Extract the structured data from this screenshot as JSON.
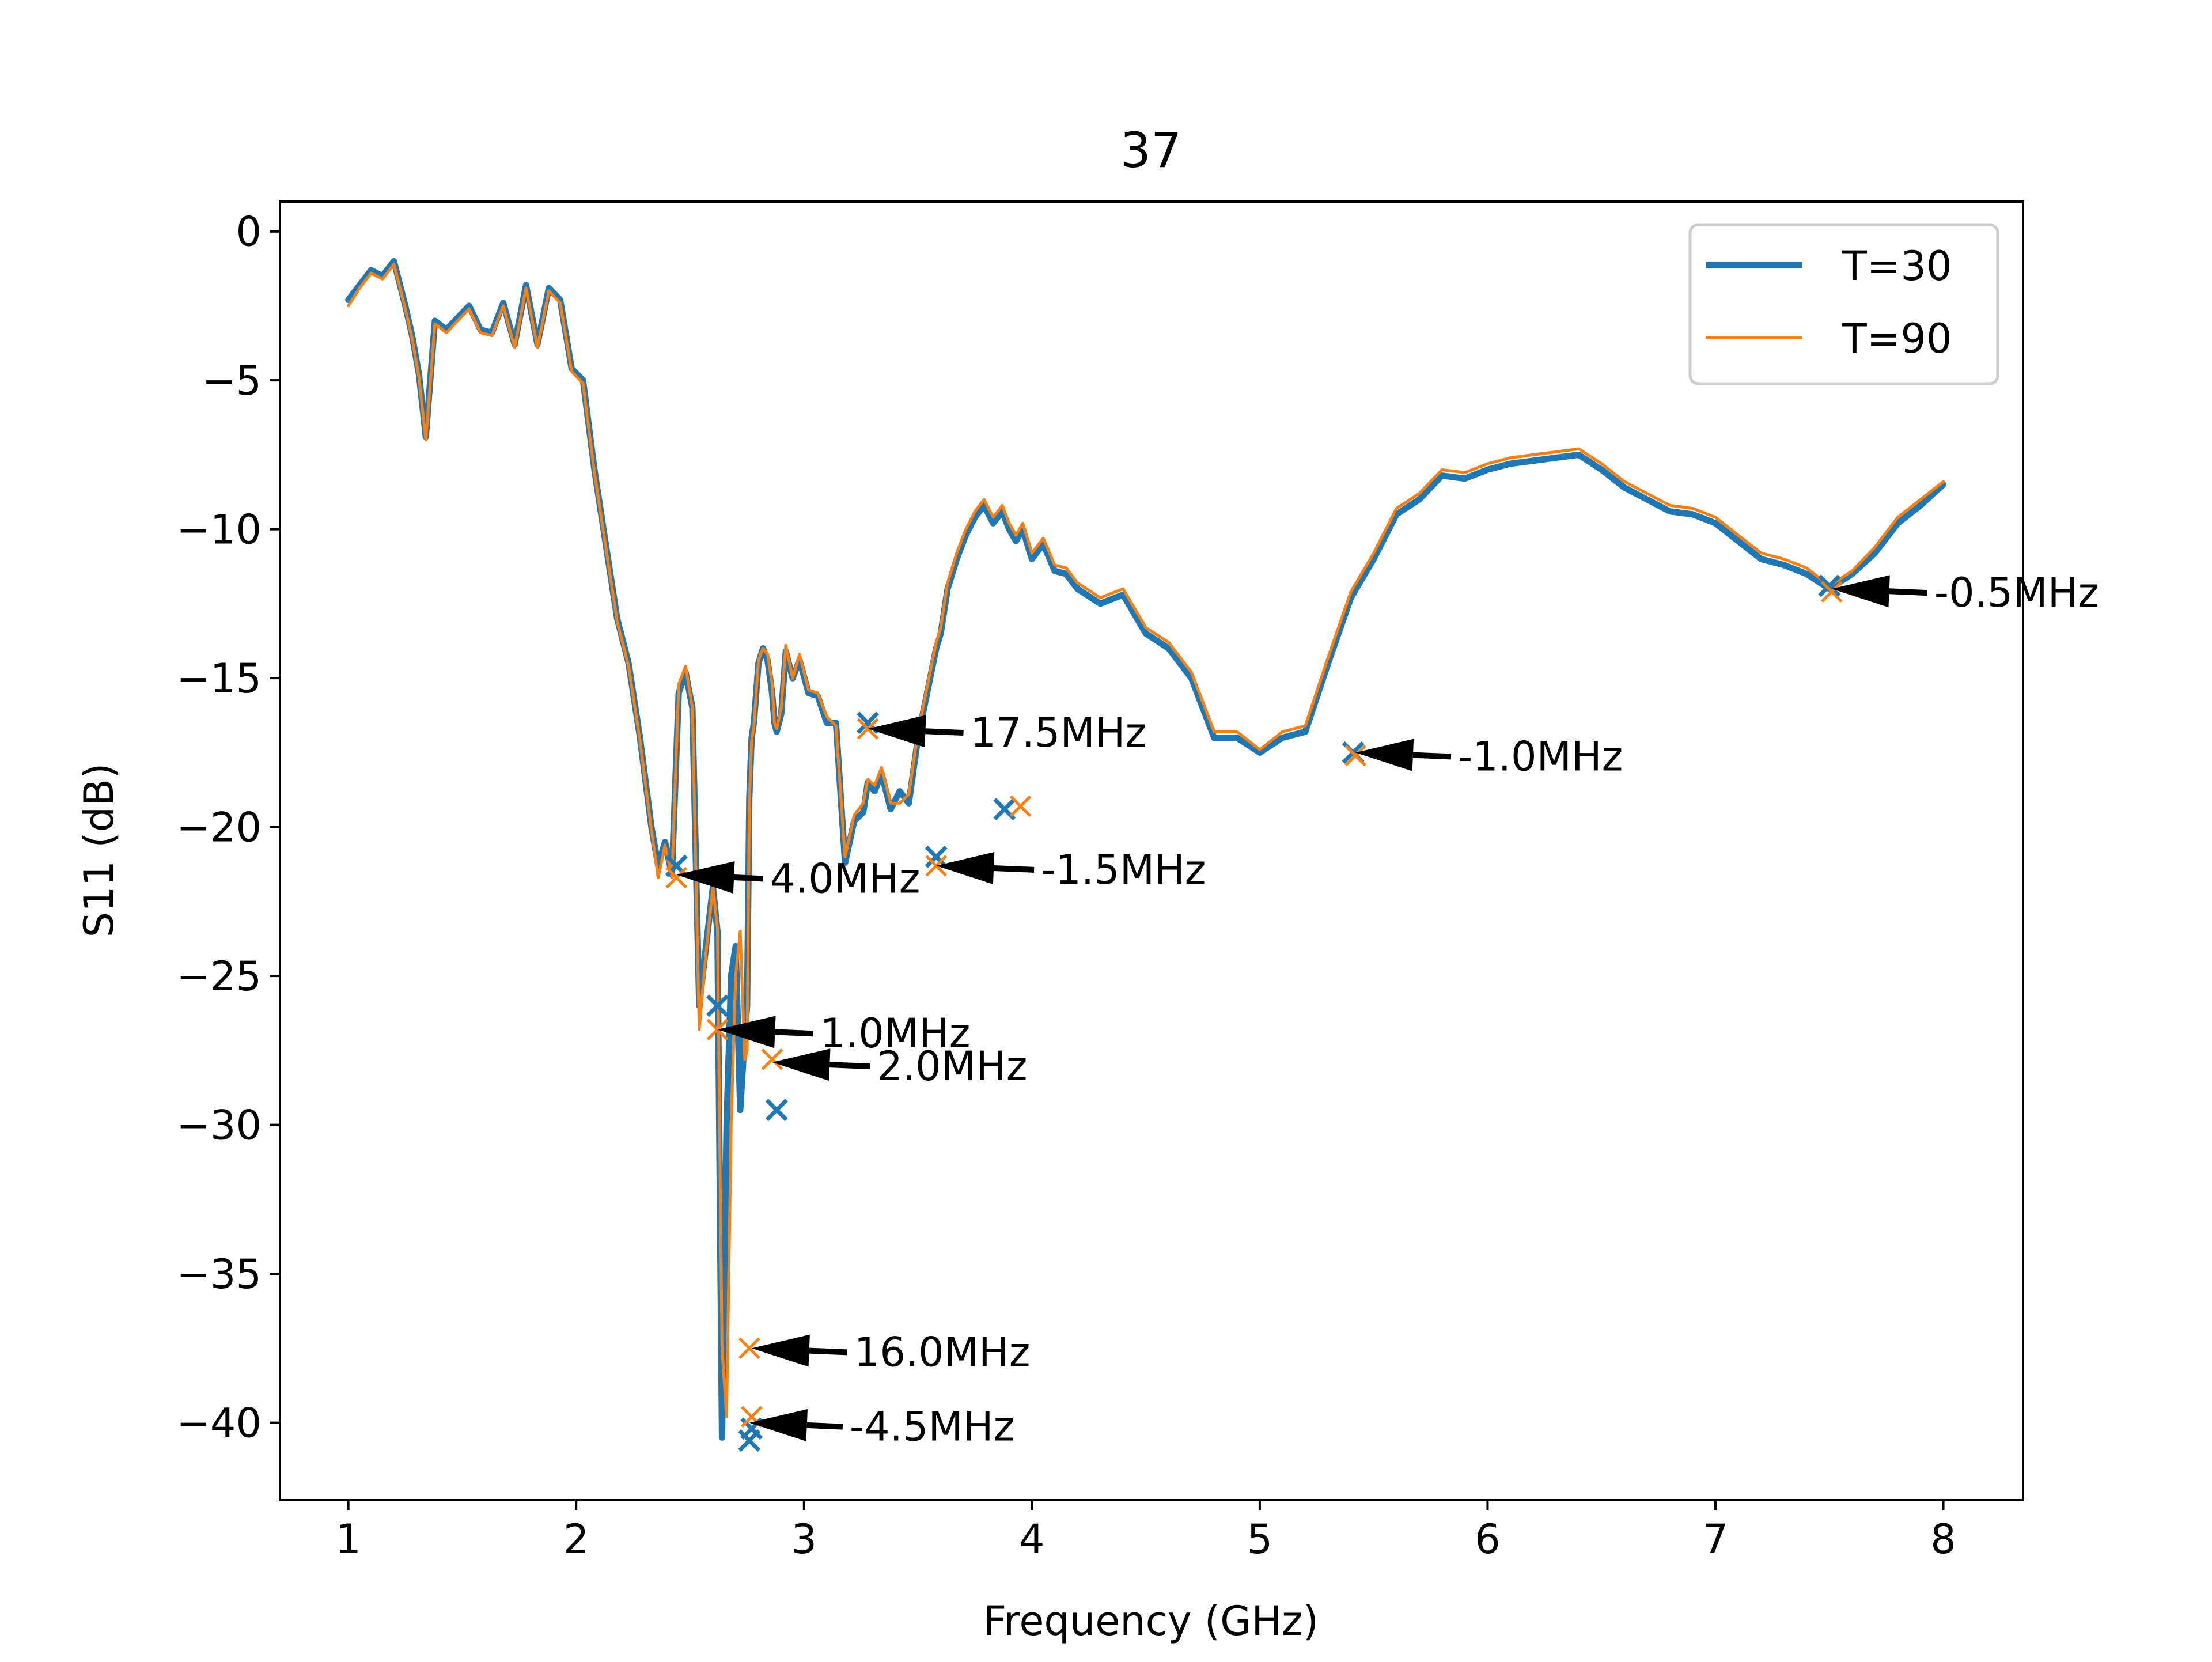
{
  "chart_data": {
    "type": "line",
    "title": "37",
    "xlabel": "Frequency (GHz)",
    "ylabel": "S11 (dB)",
    "xlim": [
      0.7,
      8.35
    ],
    "ylim": [
      -42.6,
      1.0
    ],
    "xticks": [
      1,
      2,
      3,
      4,
      5,
      6,
      7,
      8
    ],
    "yticks": [
      0,
      -5,
      -10,
      -15,
      -20,
      -25,
      -30,
      -35,
      -40
    ],
    "xtick_labels": [
      "1",
      "2",
      "3",
      "4",
      "5",
      "6",
      "7",
      "8"
    ],
    "ytick_labels": [
      "0",
      "−5",
      "−10",
      "−15",
      "−20",
      "−25",
      "−30",
      "−35",
      "−40"
    ],
    "grid": false,
    "legend_position": "top-right",
    "series": [
      {
        "name": "T=30",
        "color": "#1f77b4",
        "x": [
          1.0,
          1.05,
          1.1,
          1.15,
          1.2,
          1.25,
          1.28,
          1.31,
          1.34,
          1.38,
          1.43,
          1.48,
          1.53,
          1.58,
          1.63,
          1.68,
          1.73,
          1.78,
          1.83,
          1.88,
          1.93,
          1.98,
          2.03,
          2.08,
          2.13,
          2.18,
          2.23,
          2.28,
          2.33,
          2.36,
          2.39,
          2.42,
          2.45,
          2.48,
          2.51,
          2.54,
          2.57,
          2.6,
          2.62,
          2.64,
          2.66,
          2.68,
          2.7,
          2.72,
          2.74,
          2.75,
          2.76,
          2.77,
          2.78,
          2.8,
          2.82,
          2.84,
          2.86,
          2.87,
          2.88,
          2.9,
          2.92,
          2.95,
          2.98,
          3.02,
          3.06,
          3.1,
          3.14,
          3.18,
          3.22,
          3.26,
          3.28,
          3.31,
          3.34,
          3.38,
          3.42,
          3.46,
          3.5,
          3.54,
          3.58,
          3.6,
          3.63,
          3.67,
          3.71,
          3.75,
          3.79,
          3.83,
          3.87,
          3.9,
          3.93,
          3.96,
          4.0,
          4.05,
          4.1,
          4.15,
          4.2,
          4.3,
          4.4,
          4.5,
          4.6,
          4.7,
          4.8,
          4.9,
          5.0,
          5.1,
          5.2,
          5.3,
          5.4,
          5.5,
          5.6,
          5.7,
          5.8,
          5.9,
          6.0,
          6.1,
          6.2,
          6.3,
          6.4,
          6.5,
          6.6,
          6.7,
          6.8,
          6.9,
          7.0,
          7.1,
          7.2,
          7.3,
          7.4,
          7.5,
          7.6,
          7.7,
          7.8,
          7.9,
          8.0
        ],
        "y": [
          -2.3,
          -1.8,
          -1.3,
          -1.5,
          -1.0,
          -2.5,
          -3.5,
          -4.8,
          -6.9,
          -3.0,
          -3.3,
          -2.9,
          -2.5,
          -3.3,
          -3.4,
          -2.4,
          -3.8,
          -1.8,
          -3.8,
          -1.9,
          -2.3,
          -4.6,
          -5.0,
          -8.0,
          -10.5,
          -13.0,
          -14.5,
          -17.0,
          -20.0,
          -21.3,
          -20.5,
          -21.6,
          -15.5,
          -14.8,
          -16.0,
          -26.0,
          -24.0,
          -22.0,
          -23.5,
          -40.5,
          -30.0,
          -25.0,
          -24.0,
          -29.5,
          -27.0,
          -26.0,
          -19.0,
          -17.0,
          -16.5,
          -14.5,
          -14.0,
          -14.4,
          -15.5,
          -16.5,
          -16.8,
          -16.2,
          -14.1,
          -15.0,
          -14.4,
          -15.5,
          -15.6,
          -16.5,
          -16.5,
          -21.2,
          -19.8,
          -19.5,
          -18.5,
          -18.8,
          -18.2,
          -19.4,
          -18.8,
          -19.2,
          -17.0,
          -15.5,
          -14.0,
          -13.5,
          -12.0,
          -11.0,
          -10.2,
          -9.6,
          -9.2,
          -9.8,
          -9.4,
          -10.0,
          -10.4,
          -10.0,
          -11.0,
          -10.5,
          -11.4,
          -11.5,
          -12.0,
          -12.5,
          -12.2,
          -13.5,
          -14.0,
          -15.0,
          -17.0,
          -17.0,
          -17.5,
          -17.0,
          -16.8,
          -14.5,
          -12.3,
          -11.0,
          -9.5,
          -9.0,
          -8.2,
          -8.3,
          -8.0,
          -7.8,
          -7.7,
          -7.6,
          -7.5,
          -8.0,
          -8.6,
          -9.0,
          -9.4,
          -9.5,
          -9.8,
          -10.4,
          -11.0,
          -11.2,
          -11.5,
          -12.0,
          -11.5,
          -10.8,
          -9.8,
          -9.2,
          -8.5
        ]
      },
      {
        "name": "T=90",
        "color": "#ff7f0e",
        "x": [
          1.0,
          1.05,
          1.1,
          1.15,
          1.2,
          1.25,
          1.28,
          1.31,
          1.34,
          1.38,
          1.43,
          1.48,
          1.53,
          1.58,
          1.63,
          1.68,
          1.73,
          1.78,
          1.83,
          1.88,
          1.93,
          1.98,
          2.03,
          2.08,
          2.13,
          2.18,
          2.23,
          2.28,
          2.33,
          2.36,
          2.39,
          2.42,
          2.45,
          2.48,
          2.51,
          2.54,
          2.57,
          2.6,
          2.62,
          2.64,
          2.66,
          2.68,
          2.7,
          2.72,
          2.74,
          2.75,
          2.76,
          2.77,
          2.78,
          2.8,
          2.82,
          2.84,
          2.86,
          2.87,
          2.88,
          2.9,
          2.92,
          2.95,
          2.98,
          3.02,
          3.06,
          3.1,
          3.14,
          3.18,
          3.22,
          3.26,
          3.28,
          3.31,
          3.34,
          3.38,
          3.42,
          3.46,
          3.5,
          3.54,
          3.58,
          3.6,
          3.63,
          3.67,
          3.71,
          3.75,
          3.79,
          3.83,
          3.87,
          3.9,
          3.93,
          3.96,
          4.0,
          4.05,
          4.1,
          4.15,
          4.2,
          4.3,
          4.4,
          4.5,
          4.6,
          4.7,
          4.8,
          4.9,
          5.0,
          5.1,
          5.2,
          5.3,
          5.4,
          5.5,
          5.6,
          5.7,
          5.8,
          5.9,
          6.0,
          6.1,
          6.2,
          6.3,
          6.4,
          6.5,
          6.6,
          6.7,
          6.8,
          6.9,
          7.0,
          7.1,
          7.2,
          7.3,
          7.4,
          7.5,
          7.6,
          7.7,
          7.8,
          7.9,
          8.0
        ],
        "y": [
          -2.5,
          -1.9,
          -1.4,
          -1.6,
          -1.1,
          -2.6,
          -3.6,
          -4.9,
          -7.0,
          -3.1,
          -3.4,
          -3.0,
          -2.6,
          -3.4,
          -3.5,
          -2.5,
          -3.9,
          -1.9,
          -3.9,
          -2.0,
          -2.4,
          -4.7,
          -5.1,
          -8.1,
          -10.6,
          -13.1,
          -14.6,
          -17.1,
          -20.1,
          -21.7,
          -20.6,
          -21.7,
          -15.2,
          -14.6,
          -16.0,
          -26.8,
          -24.2,
          -22.0,
          -23.4,
          -37.5,
          -39.8,
          -30.0,
          -25.0,
          -23.5,
          -27.8,
          -27.5,
          -19.2,
          -17.1,
          -16.6,
          -14.4,
          -14.0,
          -14.2,
          -15.2,
          -16.5,
          -16.7,
          -16.0,
          -13.9,
          -15.0,
          -14.2,
          -15.4,
          -15.5,
          -16.3,
          -16.6,
          -21.0,
          -19.6,
          -19.2,
          -18.4,
          -18.6,
          -18.0,
          -19.2,
          -19.2,
          -18.9,
          -16.8,
          -15.3,
          -13.8,
          -13.3,
          -11.8,
          -10.8,
          -10.0,
          -9.4,
          -9.0,
          -9.6,
          -9.2,
          -9.8,
          -10.2,
          -9.8,
          -10.8,
          -10.3,
          -11.2,
          -11.3,
          -11.8,
          -12.3,
          -12.0,
          -13.3,
          -13.8,
          -14.8,
          -16.8,
          -16.8,
          -17.4,
          -16.8,
          -16.6,
          -14.3,
          -12.1,
          -10.8,
          -9.3,
          -8.8,
          -8.0,
          -8.1,
          -7.8,
          -7.6,
          -7.5,
          -7.4,
          -7.3,
          -7.8,
          -8.4,
          -8.8,
          -9.2,
          -9.3,
          -9.6,
          -10.2,
          -10.8,
          -11.0,
          -11.3,
          -11.9,
          -11.4,
          -10.6,
          -9.6,
          -9.0,
          -8.4
        ]
      }
    ],
    "markers": {
      "T=30": [
        [
          2.44,
          -21.3
        ],
        [
          2.62,
          -26.0
        ],
        [
          2.76,
          -40.6
        ],
        [
          2.77,
          -40.2
        ],
        [
          2.88,
          -29.5
        ],
        [
          3.28,
          -16.5
        ],
        [
          3.58,
          -21.0
        ],
        [
          3.88,
          -19.4
        ],
        [
          5.41,
          -17.5
        ],
        [
          7.5,
          -11.9
        ]
      ],
      "T=90": [
        [
          2.44,
          -21.7
        ],
        [
          2.62,
          -26.8
        ],
        [
          2.76,
          -37.5
        ],
        [
          2.77,
          -39.8
        ],
        [
          2.86,
          -27.8
        ],
        [
          3.28,
          -16.7
        ],
        [
          3.58,
          -21.3
        ],
        [
          3.95,
          -19.3
        ],
        [
          5.42,
          -17.6
        ],
        [
          7.51,
          -12.1
        ]
      ]
    },
    "annotations": [
      {
        "text": "4.0MHz",
        "point": [
          2.44,
          -21.6
        ],
        "text_at": [
          2.85,
          -22.2
        ]
      },
      {
        "text": "1.0MHz",
        "point": [
          2.62,
          -26.8
        ],
        "text_at": [
          3.07,
          -27.4
        ]
      },
      {
        "text": "2.0MHz",
        "point": [
          2.86,
          -27.9
        ],
        "text_at": [
          3.32,
          -28.5
        ]
      },
      {
        "text": "17.5MHz",
        "point": [
          3.28,
          -16.7
        ],
        "text_at": [
          3.73,
          -17.3
        ]
      },
      {
        "text": "-1.5MHz",
        "point": [
          3.58,
          -21.3
        ],
        "text_at": [
          4.04,
          -21.9
        ]
      },
      {
        "text": "16.0MHz",
        "point": [
          2.77,
          -37.5
        ],
        "text_at": [
          3.22,
          -38.1
        ]
      },
      {
        "text": "-4.5MHz",
        "point": [
          2.76,
          -40.0
        ],
        "text_at": [
          3.2,
          -40.6
        ]
      },
      {
        "text": "-1.0MHz",
        "point": [
          5.42,
          -17.5
        ],
        "text_at": [
          5.87,
          -18.1
        ]
      },
      {
        "text": "-0.5MHz",
        "point": [
          7.51,
          -12.0
        ],
        "text_at": [
          7.96,
          -12.6
        ]
      }
    ]
  }
}
